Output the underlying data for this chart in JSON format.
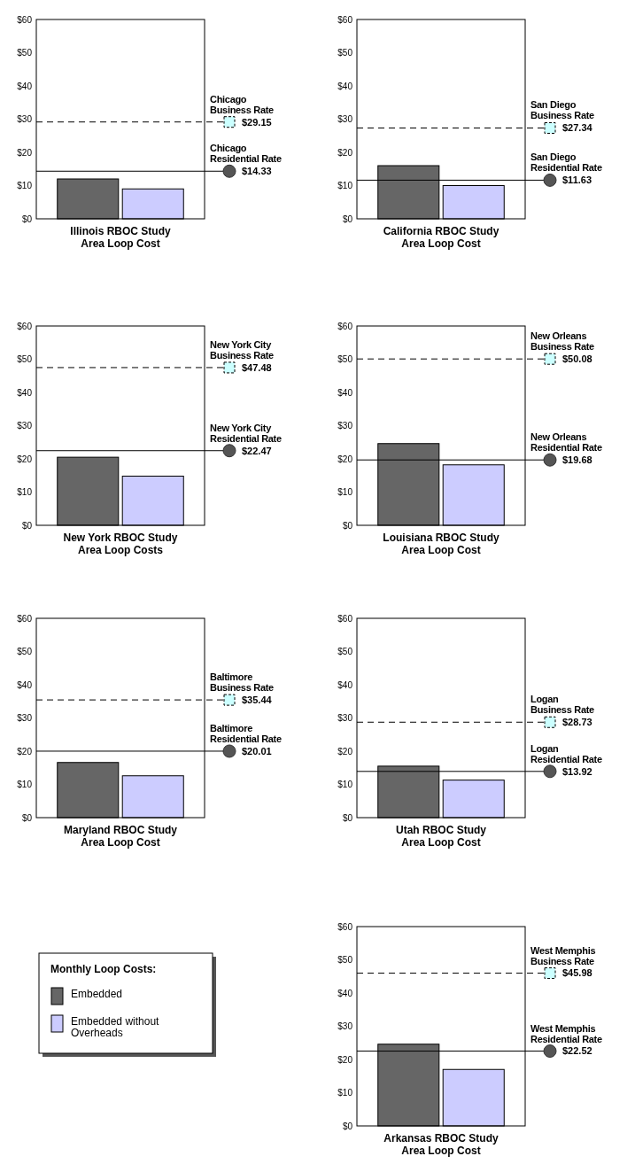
{
  "chart_data": [
    {
      "type": "bar",
      "xlabel": "Illinois RBOC Study\nArea Loop Cost",
      "categories": [
        null
      ],
      "series": [
        {
          "color": "#666666",
          "values": [
            12
          ]
        },
        {
          "color": "#ccccff",
          "values": [
            9
          ]
        }
      ],
      "ylim": [
        0,
        60
      ],
      "yticks": [
        {
          "value": 0,
          "label": "$0"
        },
        {
          "value": 10,
          "label": "$10"
        },
        {
          "value": 20,
          "label": "$20"
        },
        {
          "value": 30,
          "label": "$30"
        },
        {
          "value": 40,
          "label": "$40"
        },
        {
          "value": 50,
          "label": "$50"
        },
        {
          "value": 60,
          "label": "$60"
        }
      ],
      "ref_lines": [
        {
          "axis": "y",
          "value": 29.15,
          "label": "Chicago\nBusiness Rate",
          "line_style": "dashed"
        },
        {
          "axis": "y",
          "value": 14.33,
          "label": "Chicago\nResidential Rate",
          "line_style": "solid"
        }
      ],
      "annotations": [
        "$29.15",
        "$14.33"
      ]
    },
    {
      "type": "bar",
      "xlabel": "California RBOC Study\nArea Loop Cost",
      "categories": [
        null
      ],
      "series": [
        {
          "color": "#666666",
          "values": [
            16
          ]
        },
        {
          "color": "#ccccff",
          "values": [
            10
          ]
        }
      ],
      "ylim": [
        0,
        60
      ],
      "yticks": [
        {
          "value": 0,
          "label": "$0"
        },
        {
          "value": 10,
          "label": "$10"
        },
        {
          "value": 20,
          "label": "$20"
        },
        {
          "value": 30,
          "label": "$30"
        },
        {
          "value": 40,
          "label": "$40"
        },
        {
          "value": 50,
          "label": "$50"
        },
        {
          "value": 60,
          "label": "$60"
        }
      ],
      "ref_lines": [
        {
          "axis": "y",
          "value": 27.34,
          "label": "San Diego\nBusiness Rate",
          "line_style": "dashed"
        },
        {
          "axis": "y",
          "value": 11.63,
          "label": "San Diego\nResidential Rate",
          "line_style": "solid"
        }
      ],
      "annotations": [
        "$27.34",
        "$11.63"
      ]
    },
    {
      "type": "bar",
      "xlabel": "New York RBOC Study\nArea Loop Costs",
      "categories": [
        null
      ],
      "series": [
        {
          "color": "#666666",
          "values": [
            20.5
          ]
        },
        {
          "color": "#ccccff",
          "values": [
            14.8
          ]
        }
      ],
      "ylim": [
        0,
        60
      ],
      "yticks": [
        {
          "value": 0,
          "label": "$0"
        },
        {
          "value": 10,
          "label": "$10"
        },
        {
          "value": 20,
          "label": "$20"
        },
        {
          "value": 30,
          "label": "$30"
        },
        {
          "value": 40,
          "label": "$40"
        },
        {
          "value": 50,
          "label": "$50"
        },
        {
          "value": 60,
          "label": "$60"
        }
      ],
      "ref_lines": [
        {
          "axis": "y",
          "value": 47.48,
          "label": "New York City\nBusiness Rate",
          "line_style": "dashed"
        },
        {
          "axis": "y",
          "value": 22.47,
          "label": "New York City\nResidential Rate",
          "line_style": "solid"
        }
      ],
      "annotations": [
        "$47.48",
        "$22.47"
      ]
    },
    {
      "type": "bar",
      "xlabel": "Louisiana RBOC Study\nArea Loop Cost",
      "categories": [
        null
      ],
      "series": [
        {
          "color": "#666666",
          "values": [
            24.6
          ]
        },
        {
          "color": "#ccccff",
          "values": [
            18.2
          ]
        }
      ],
      "ylim": [
        0,
        60
      ],
      "yticks": [
        {
          "value": 0,
          "label": "$0"
        },
        {
          "value": 10,
          "label": "$10"
        },
        {
          "value": 20,
          "label": "$20"
        },
        {
          "value": 30,
          "label": "$30"
        },
        {
          "value": 40,
          "label": "$40"
        },
        {
          "value": 50,
          "label": "$50"
        },
        {
          "value": 60,
          "label": "$60"
        }
      ],
      "ref_lines": [
        {
          "axis": "y",
          "value": 50.08,
          "label": "New Orleans\nBusiness Rate",
          "line_style": "dashed"
        },
        {
          "axis": "y",
          "value": 19.68,
          "label": "New Orleans\nResidential Rate",
          "line_style": "solid"
        }
      ],
      "annotations": [
        "$50.08",
        "$19.68"
      ]
    },
    {
      "type": "bar",
      "xlabel": "Maryland RBOC Study\nArea Loop Cost",
      "categories": [
        null
      ],
      "series": [
        {
          "color": "#666666",
          "values": [
            16.6
          ]
        },
        {
          "color": "#ccccff",
          "values": [
            12.6
          ]
        }
      ],
      "ylim": [
        0,
        60
      ],
      "yticks": [
        {
          "value": 0,
          "label": "$0"
        },
        {
          "value": 10,
          "label": "$10"
        },
        {
          "value": 20,
          "label": "$20"
        },
        {
          "value": 30,
          "label": "$30"
        },
        {
          "value": 40,
          "label": "$40"
        },
        {
          "value": 50,
          "label": "$50"
        },
        {
          "value": 60,
          "label": "$60"
        }
      ],
      "ref_lines": [
        {
          "axis": "y",
          "value": 35.44,
          "label": "Baltimore\nBusiness Rate",
          "line_style": "dashed"
        },
        {
          "axis": "y",
          "value": 20.01,
          "label": "Baltimore\nResidential Rate",
          "line_style": "solid"
        }
      ],
      "annotations": [
        "$35.44",
        "$20.01"
      ]
    },
    {
      "type": "bar",
      "xlabel": "Utah RBOC Study\nArea Loop Cost",
      "categories": [
        null
      ],
      "series": [
        {
          "color": "#666666",
          "values": [
            15.5
          ]
        },
        {
          "color": "#ccccff",
          "values": [
            11.3
          ]
        }
      ],
      "ylim": [
        0,
        60
      ],
      "yticks": [
        {
          "value": 0,
          "label": "$0"
        },
        {
          "value": 10,
          "label": "$10"
        },
        {
          "value": 20,
          "label": "$20"
        },
        {
          "value": 30,
          "label": "$30"
        },
        {
          "value": 40,
          "label": "$40"
        },
        {
          "value": 50,
          "label": "$50"
        },
        {
          "value": 60,
          "label": "$60"
        }
      ],
      "ref_lines": [
        {
          "axis": "y",
          "value": 28.73,
          "label": "Logan\nBusiness Rate",
          "line_style": "dashed"
        },
        {
          "axis": "y",
          "value": 13.92,
          "label": "Logan\nResidential Rate",
          "line_style": "solid"
        }
      ],
      "annotations": [
        "$28.73",
        "$13.92"
      ]
    },
    {
      "type": "bar",
      "xlabel": "Arkansas RBOC Study\nArea Loop Cost",
      "categories": [
        null
      ],
      "series": [
        {
          "name": "Embedded",
          "color": "#666666",
          "values": [
            24.6
          ]
        },
        {
          "name": "Embedded without\nOverheads",
          "color": "#ccccff",
          "values": [
            17
          ]
        }
      ],
      "ylim": [
        0,
        60
      ],
      "yticks": [
        {
          "value": 0,
          "label": "$0"
        },
        {
          "value": 10,
          "label": "$10"
        },
        {
          "value": 20,
          "label": "$20"
        },
        {
          "value": 30,
          "label": "$30"
        },
        {
          "value": 40,
          "label": "$40"
        },
        {
          "value": 50,
          "label": "$50"
        },
        {
          "value": 60,
          "label": "$60"
        }
      ],
      "ref_lines": [
        {
          "axis": "y",
          "value": 45.98,
          "label": "West Memphis\nBusiness Rate",
          "line_style": "dashed"
        },
        {
          "axis": "y",
          "value": 22.52,
          "label": "West Memphis\nResidential Rate",
          "line_style": "solid"
        }
      ],
      "annotations": [
        "$45.98",
        "$22.52"
      ],
      "legend": "left",
      "legend_title": "Monthly Loop Costs:"
    }
  ]
}
